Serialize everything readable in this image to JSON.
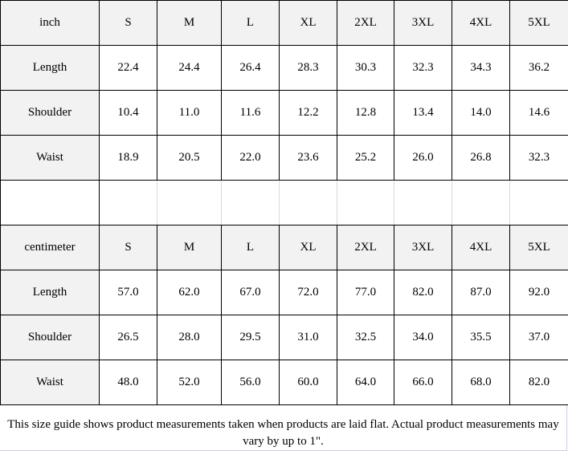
{
  "tables": [
    {
      "unit": "inch",
      "sizes": [
        "S",
        "M",
        "L",
        "XL",
        "2XL",
        "3XL",
        "4XL",
        "5XL"
      ],
      "rows": [
        {
          "label": "Length",
          "values": [
            "22.4",
            "24.4",
            "26.4",
            "28.3",
            "30.3",
            "32.3",
            "34.3",
            "36.2"
          ]
        },
        {
          "label": "Shoulder",
          "values": [
            "10.4",
            "11.0",
            "11.6",
            "12.2",
            "12.8",
            "13.4",
            "14.0",
            "14.6"
          ]
        },
        {
          "label": "Waist",
          "values": [
            "18.9",
            "20.5",
            "22.0",
            "23.6",
            "25.2",
            "26.0",
            "26.8",
            "32.3"
          ]
        }
      ]
    },
    {
      "unit": "centimeter",
      "sizes": [
        "S",
        "M",
        "L",
        "XL",
        "2XL",
        "3XL",
        "4XL",
        "5XL"
      ],
      "rows": [
        {
          "label": "Length",
          "values": [
            "57.0",
            "62.0",
            "67.0",
            "72.0",
            "77.0",
            "82.0",
            "87.0",
            "92.0"
          ]
        },
        {
          "label": "Shoulder",
          "values": [
            "26.5",
            "28.0",
            "29.5",
            "31.0",
            "32.5",
            "34.0",
            "35.5",
            "37.0"
          ]
        },
        {
          "label": "Waist",
          "values": [
            "48.0",
            "52.0",
            "56.0",
            "60.0",
            "64.0",
            "66.0",
            "68.0",
            "82.0"
          ]
        }
      ]
    }
  ],
  "note": "This size guide shows product measurements taken when products are laid flat. Actual product measurements may vary by up to 1\".",
  "colors": {
    "header_bg": "#f2f2f2",
    "border": "#000000"
  }
}
